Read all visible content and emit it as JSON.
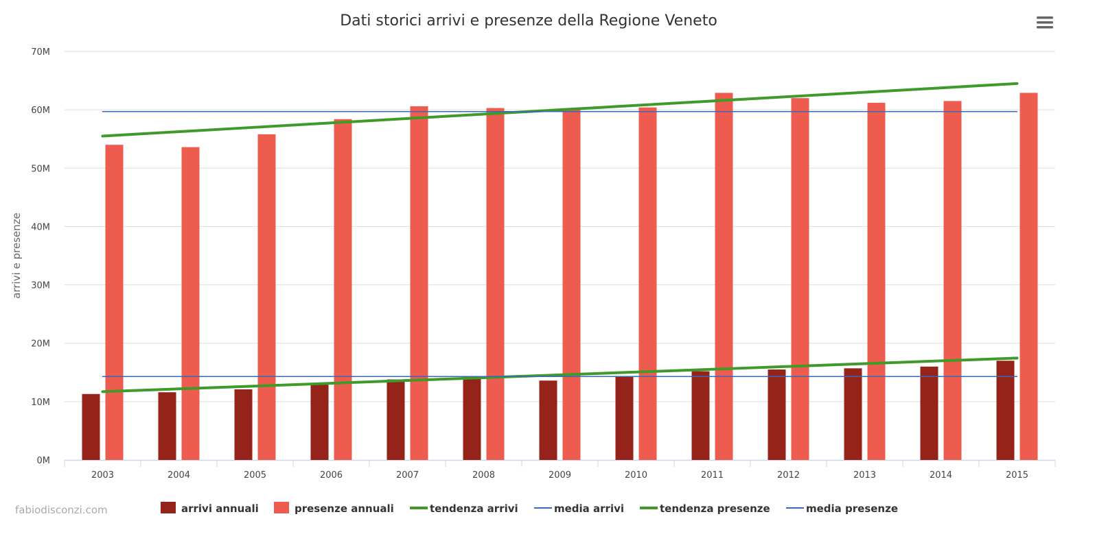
{
  "menu": {
    "icon": "hamburger-menu-icon"
  },
  "credit": "fabiodisconzi.com",
  "chart_data": {
    "type": "bar",
    "title": "Dati storici arrivi e presenze della Regione Veneto",
    "xlabel": "",
    "ylabel": "arrivi e presenze",
    "categories": [
      "2003",
      "2004",
      "2005",
      "2006",
      "2007",
      "2008",
      "2009",
      "2010",
      "2011",
      "2012",
      "2013",
      "2014",
      "2015"
    ],
    "ylim": [
      0,
      70000000
    ],
    "yticks": [
      {
        "value": 0,
        "label": "0M"
      },
      {
        "value": 10000000,
        "label": "10M"
      },
      {
        "value": 20000000,
        "label": "20M"
      },
      {
        "value": 30000000,
        "label": "30M"
      },
      {
        "value": 40000000,
        "label": "40M"
      },
      {
        "value": 50000000,
        "label": "50M"
      },
      {
        "value": 60000000,
        "label": "60M"
      },
      {
        "value": 70000000,
        "label": "70M"
      }
    ],
    "grid": true,
    "legend_position": "bottom",
    "series": [
      {
        "name": "arrivi annuali",
        "type": "bar",
        "color": "#952319",
        "values": [
          11300000,
          11600000,
          12100000,
          12900000,
          13800000,
          13900000,
          13600000,
          14300000,
          15200000,
          15500000,
          15700000,
          16000000,
          17000000
        ]
      },
      {
        "name": "presenze annuali",
        "type": "bar",
        "color": "#ee5c4f",
        "values": [
          54000000,
          53600000,
          55800000,
          58400000,
          60600000,
          60300000,
          60000000,
          60400000,
          62900000,
          62000000,
          61200000,
          61500000,
          62900000
        ]
      },
      {
        "name": "tendenza arrivi",
        "type": "line",
        "color": "#3f9a2a",
        "values": [
          11700000,
          12180000,
          12660000,
          13140000,
          13620000,
          14100000,
          14580000,
          15060000,
          15540000,
          16020000,
          16500000,
          16980000,
          17460000
        ]
      },
      {
        "name": "media arrivi",
        "type": "line",
        "color": "#3668b5",
        "values": [
          14300000,
          14300000,
          14300000,
          14300000,
          14300000,
          14300000,
          14300000,
          14300000,
          14300000,
          14300000,
          14300000,
          14300000,
          14300000
        ]
      },
      {
        "name": "tendenza presenze",
        "type": "line",
        "color": "#3f9a2a",
        "values": [
          55500000,
          56250000,
          57000000,
          57750000,
          58500000,
          59250000,
          60000000,
          60750000,
          61500000,
          62250000,
          63000000,
          63750000,
          64500000
        ]
      },
      {
        "name": "media presenze",
        "type": "line",
        "color": "#3668b5",
        "values": [
          59700000,
          59700000,
          59700000,
          59700000,
          59700000,
          59700000,
          59700000,
          59700000,
          59700000,
          59700000,
          59700000,
          59700000,
          59700000
        ]
      }
    ]
  }
}
